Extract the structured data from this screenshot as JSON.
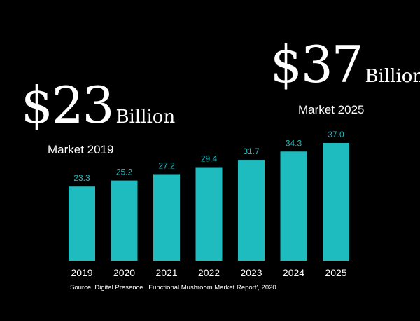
{
  "callouts": {
    "left": {
      "currency": "$",
      "amount": "23",
      "unit": "Billion",
      "label": "Market 2019"
    },
    "right": {
      "currency": "$",
      "amount": "37",
      "unit": "Billion",
      "label": "Market 2025"
    }
  },
  "source": "Source: Digital Presence | Functional Mushroom Market Report', 2020",
  "colors": {
    "bar": "#1fbcbf",
    "value_label": "#1fbcbf",
    "axis_label": "#ffffff",
    "background": "#000000"
  },
  "chart_data": {
    "type": "bar",
    "categories": [
      "2019",
      "2020",
      "2021",
      "2022",
      "2023",
      "2024",
      "2025"
    ],
    "values": [
      23.3,
      25.2,
      27.2,
      29.4,
      31.7,
      34.3,
      37.0
    ],
    "value_labels": [
      "23.3",
      "25.2",
      "27.2",
      "29.4",
      "31.7",
      "34.3",
      "37.0"
    ],
    "title": "",
    "xlabel": "",
    "ylabel": "",
    "ylim": [
      0,
      37.0
    ],
    "grid": false,
    "legend": "none"
  }
}
